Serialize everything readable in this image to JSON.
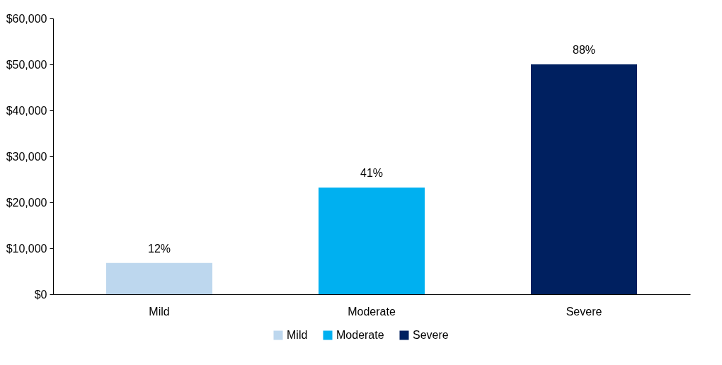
{
  "chart_data": {
    "type": "bar",
    "categories": [
      "Mild",
      "Moderate",
      "Severe"
    ],
    "stacked": true,
    "series": [
      {
        "name": "Mild",
        "color": "#bdd7ee",
        "values": [
          6800,
          null,
          null
        ]
      },
      {
        "name": "Moderate",
        "color": "#00b0f0",
        "values": [
          null,
          23200,
          null
        ]
      },
      {
        "name": "Severe",
        "color": "#002060",
        "values": [
          null,
          null,
          50000
        ]
      }
    ],
    "annotations": [
      {
        "text": "12%",
        "x": "Mild",
        "y": 6800
      },
      {
        "text": "41%",
        "x": "Moderate",
        "y": 23200
      },
      {
        "text": "88%",
        "x": "Severe",
        "y": 50000
      }
    ],
    "ylim": [
      0,
      60000
    ],
    "yticks": [
      {
        "value": 0,
        "label": "$0"
      },
      {
        "value": 10000,
        "label": "$10,000"
      },
      {
        "value": 20000,
        "label": "$20,000"
      },
      {
        "value": 30000,
        "label": "$30,000"
      },
      {
        "value": 40000,
        "label": "$40,000"
      },
      {
        "value": 50000,
        "label": "$50,000"
      },
      {
        "value": 60000,
        "label": "$60,000"
      }
    ],
    "grid": false,
    "legend": "bottom"
  }
}
